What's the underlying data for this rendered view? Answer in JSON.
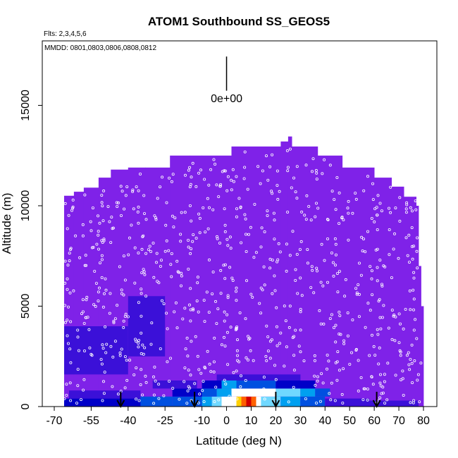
{
  "chart_data": {
    "type": "heatmap",
    "title": "ATOM1 Southbound SS_GEOS5",
    "flights_note": "Flts: 2,3,4,5,6",
    "dates_note": "MMDD: 0801,0803,0806,0808,0812",
    "xlabel": "Latitude (deg N)",
    "ylabel": "Altitude (m)",
    "xlim": [
      -70,
      82
    ],
    "ylim": [
      0,
      17500
    ],
    "x_ticks": [
      -70,
      -55,
      -40,
      -25,
      -10,
      0,
      10,
      20,
      30,
      40,
      50,
      60,
      70,
      80
    ],
    "y_ticks": [
      0,
      5000,
      10000,
      15000
    ],
    "colorbar_label": "0e+00",
    "background_color": "#7f22e8",
    "colorscale": [
      "#7f22e8",
      "#3b10d8",
      "#0000c8",
      "#0050e0",
      "#00a0f0",
      "#70d8ff",
      "#ffffff",
      "#ffd000",
      "#ff6000",
      "#d00000"
    ],
    "top_envelope": [
      {
        "lat": [
          -66,
          -62
        ],
        "top": 10500
      },
      {
        "lat": [
          -62,
          -58
        ],
        "top": 10700
      },
      {
        "lat": [
          -58,
          -52
        ],
        "top": 10900
      },
      {
        "lat": [
          -52,
          -47
        ],
        "top": 11400
      },
      {
        "lat": [
          -47,
          -40
        ],
        "top": 11800
      },
      {
        "lat": [
          -40,
          -33
        ],
        "top": 11900
      },
      {
        "lat": [
          -33,
          -23
        ],
        "top": 11900
      },
      {
        "lat": [
          -23,
          -15
        ],
        "top": 12500
      },
      {
        "lat": [
          -15,
          -10
        ],
        "top": 12500
      },
      {
        "lat": [
          -10,
          2
        ],
        "top": 12500
      },
      {
        "lat": [
          2,
          22
        ],
        "top": 12950
      },
      {
        "lat": [
          22,
          25
        ],
        "top": 13200
      },
      {
        "lat": [
          25,
          26.5
        ],
        "top": 13450
      },
      {
        "lat": [
          26.5,
          37
        ],
        "top": 12950
      },
      {
        "lat": [
          37,
          47
        ],
        "top": 12500
      },
      {
        "lat": [
          47,
          60
        ],
        "top": 11900
      },
      {
        "lat": [
          60,
          67
        ],
        "top": 11400
      },
      {
        "lat": [
          67,
          72
        ],
        "top": 10950
      },
      {
        "lat": [
          72,
          77
        ],
        "top": 10450
      },
      {
        "lat": [
          77,
          78
        ],
        "top": 10000
      },
      {
        "lat": [
          78,
          79
        ],
        "top": 7000
      },
      {
        "lat": [
          79,
          80
        ],
        "top": 5000
      }
    ],
    "enhancement_cells": [
      {
        "lat": [
          -66,
          -30
        ],
        "alt": [
          0,
          400
        ],
        "level": 2
      },
      {
        "lat": [
          -64,
          -35
        ],
        "alt": [
          400,
          800
        ],
        "level": 1
      },
      {
        "lat": [
          -35,
          -22
        ],
        "alt": [
          0,
          500
        ],
        "level": 3
      },
      {
        "lat": [
          -22,
          -10
        ],
        "alt": [
          0,
          500
        ],
        "level": 3
      },
      {
        "lat": [
          -22,
          -10
        ],
        "alt": [
          500,
          900
        ],
        "level": 2
      },
      {
        "lat": [
          -30,
          -12
        ],
        "alt": [
          900,
          1300
        ],
        "level": 1
      },
      {
        "lat": [
          -10,
          -6
        ],
        "alt": [
          0,
          500
        ],
        "level": 4
      },
      {
        "lat": [
          -6,
          -2
        ],
        "alt": [
          0,
          500
        ],
        "level": 5
      },
      {
        "lat": [
          -2,
          4
        ],
        "alt": [
          0,
          500
        ],
        "level": 6
      },
      {
        "lat": [
          4,
          6
        ],
        "alt": [
          0,
          500
        ],
        "level": 7
      },
      {
        "lat": [
          6,
          8
        ],
        "alt": [
          0,
          500
        ],
        "level": 8
      },
      {
        "lat": [
          8,
          10
        ],
        "alt": [
          0,
          500
        ],
        "level": 9
      },
      {
        "lat": [
          10,
          12
        ],
        "alt": [
          0,
          500
        ],
        "level": 8
      },
      {
        "lat": [
          12,
          14
        ],
        "alt": [
          0,
          500
        ],
        "level": 6
      },
      {
        "lat": [
          14,
          22
        ],
        "alt": [
          0,
          500
        ],
        "level": 5
      },
      {
        "lat": [
          22,
          30
        ],
        "alt": [
          0,
          500
        ],
        "level": 4
      },
      {
        "lat": [
          30,
          40
        ],
        "alt": [
          0,
          500
        ],
        "level": 3
      },
      {
        "lat": [
          -10,
          -4
        ],
        "alt": [
          500,
          900
        ],
        "level": 3
      },
      {
        "lat": [
          -4,
          2
        ],
        "alt": [
          500,
          900
        ],
        "level": 4
      },
      {
        "lat": [
          2,
          20
        ],
        "alt": [
          500,
          900
        ],
        "level": 6
      },
      {
        "lat": [
          20,
          30
        ],
        "alt": [
          500,
          900
        ],
        "level": 5
      },
      {
        "lat": [
          30,
          36
        ],
        "alt": [
          500,
          900
        ],
        "level": 4
      },
      {
        "lat": [
          36,
          42
        ],
        "alt": [
          500,
          900
        ],
        "level": 3
      },
      {
        "lat": [
          -10,
          -2
        ],
        "alt": [
          900,
          1300
        ],
        "level": 2
      },
      {
        "lat": [
          -2,
          4
        ],
        "alt": [
          900,
          1300
        ],
        "level": 4
      },
      {
        "lat": [
          4,
          20
        ],
        "alt": [
          900,
          1300
        ],
        "level": 3
      },
      {
        "lat": [
          20,
          36
        ],
        "alt": [
          900,
          1300
        ],
        "level": 2
      },
      {
        "lat": [
          -4,
          30
        ],
        "alt": [
          1300,
          1600
        ],
        "level": 1
      },
      {
        "lat": [
          40,
          58
        ],
        "alt": [
          0,
          400
        ],
        "level": 1
      },
      {
        "lat": [
          -66,
          -40
        ],
        "alt": [
          1600,
          4000
        ],
        "level": 1
      },
      {
        "lat": [
          -40,
          -25
        ],
        "alt": [
          2500,
          5500
        ],
        "level": 1
      },
      {
        "lat": [
          58,
          78
        ],
        "alt": [
          0,
          300
        ],
        "level": 1
      }
    ],
    "vertical_paths_lat": [
      -64,
      -50,
      -35,
      -15,
      0,
      20,
      45,
      62,
      76
    ],
    "point_seed": 20160801,
    "arrows_lat": [
      -43,
      -13,
      20,
      61
    ],
    "colorbar_line_alt": [
      15800,
      17500
    ]
  }
}
